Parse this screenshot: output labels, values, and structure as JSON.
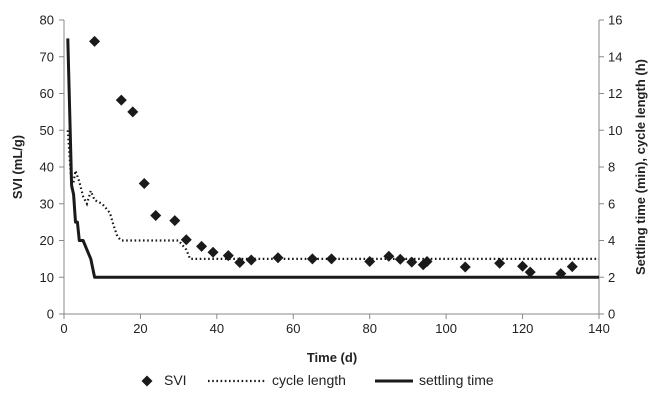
{
  "chart_data": {
    "type": "scatter",
    "xlabel": "Time (d)",
    "ylabel": "SVI (mL/g)",
    "y2label": "Settling time (min), cycle length (h)",
    "xlim": [
      0,
      140
    ],
    "ylim": [
      0,
      80
    ],
    "y2lim": [
      0,
      16
    ],
    "xticks": [
      "0",
      "20",
      "40",
      "60",
      "80",
      "100",
      "120",
      "140"
    ],
    "yticks": [
      "0",
      "10",
      "20",
      "30",
      "40",
      "50",
      "60",
      "70",
      "80"
    ],
    "y2ticks": [
      "0",
      "2",
      "4",
      "6",
      "8",
      "10",
      "12",
      "14",
      "16"
    ],
    "grid": false,
    "legend_position": "bottom",
    "series": [
      {
        "name": "SVI",
        "kind": "markers",
        "axis": "left",
        "marker": "diamond",
        "color": "#1a1a1a",
        "x": [
          8,
          15,
          18,
          21,
          24,
          29,
          32,
          36,
          39,
          43,
          46,
          49,
          56,
          65,
          70,
          80,
          85,
          88,
          91,
          94,
          95,
          105,
          114,
          120,
          122,
          130,
          133
        ],
        "y": [
          74.2,
          58.2,
          55,
          35.5,
          26.8,
          25.4,
          20.2,
          18.4,
          16.8,
          15.9,
          14,
          14.7,
          15.3,
          15,
          15,
          14.3,
          15.7,
          14.9,
          14.1,
          13.4,
          14.3,
          12.8,
          13.8,
          13,
          11.4,
          11,
          12.9
        ]
      },
      {
        "name": "cycle length",
        "kind": "dotted-line",
        "axis": "right",
        "color": "#1a1a1a",
        "x": [
          1,
          1.5,
          2,
          2.5,
          3,
          4,
          5,
          6,
          7,
          8,
          9,
          10,
          12,
          13,
          14,
          15,
          16,
          20,
          30,
          32,
          33,
          35,
          40,
          60,
          80,
          100,
          140
        ],
        "y": [
          10,
          8.5,
          7,
          7.2,
          7.8,
          7.2,
          6.4,
          6,
          6.7,
          6.2,
          6.1,
          6,
          5.5,
          4.8,
          4.2,
          4,
          4,
          4,
          4,
          3.5,
          3,
          3,
          3,
          3,
          3,
          3,
          3
        ]
      },
      {
        "name": "settling time",
        "kind": "solid-line",
        "axis": "right",
        "color": "#1a1a1a",
        "x": [
          1,
          1.5,
          2,
          2.5,
          3,
          3.5,
          4,
          4.5,
          5,
          6,
          7,
          8,
          20,
          60,
          100,
          140
        ],
        "y": [
          15,
          11,
          7,
          6.5,
          5,
          5,
          4,
          4,
          4,
          3.5,
          3,
          2,
          2,
          2,
          2,
          2
        ]
      }
    ]
  }
}
